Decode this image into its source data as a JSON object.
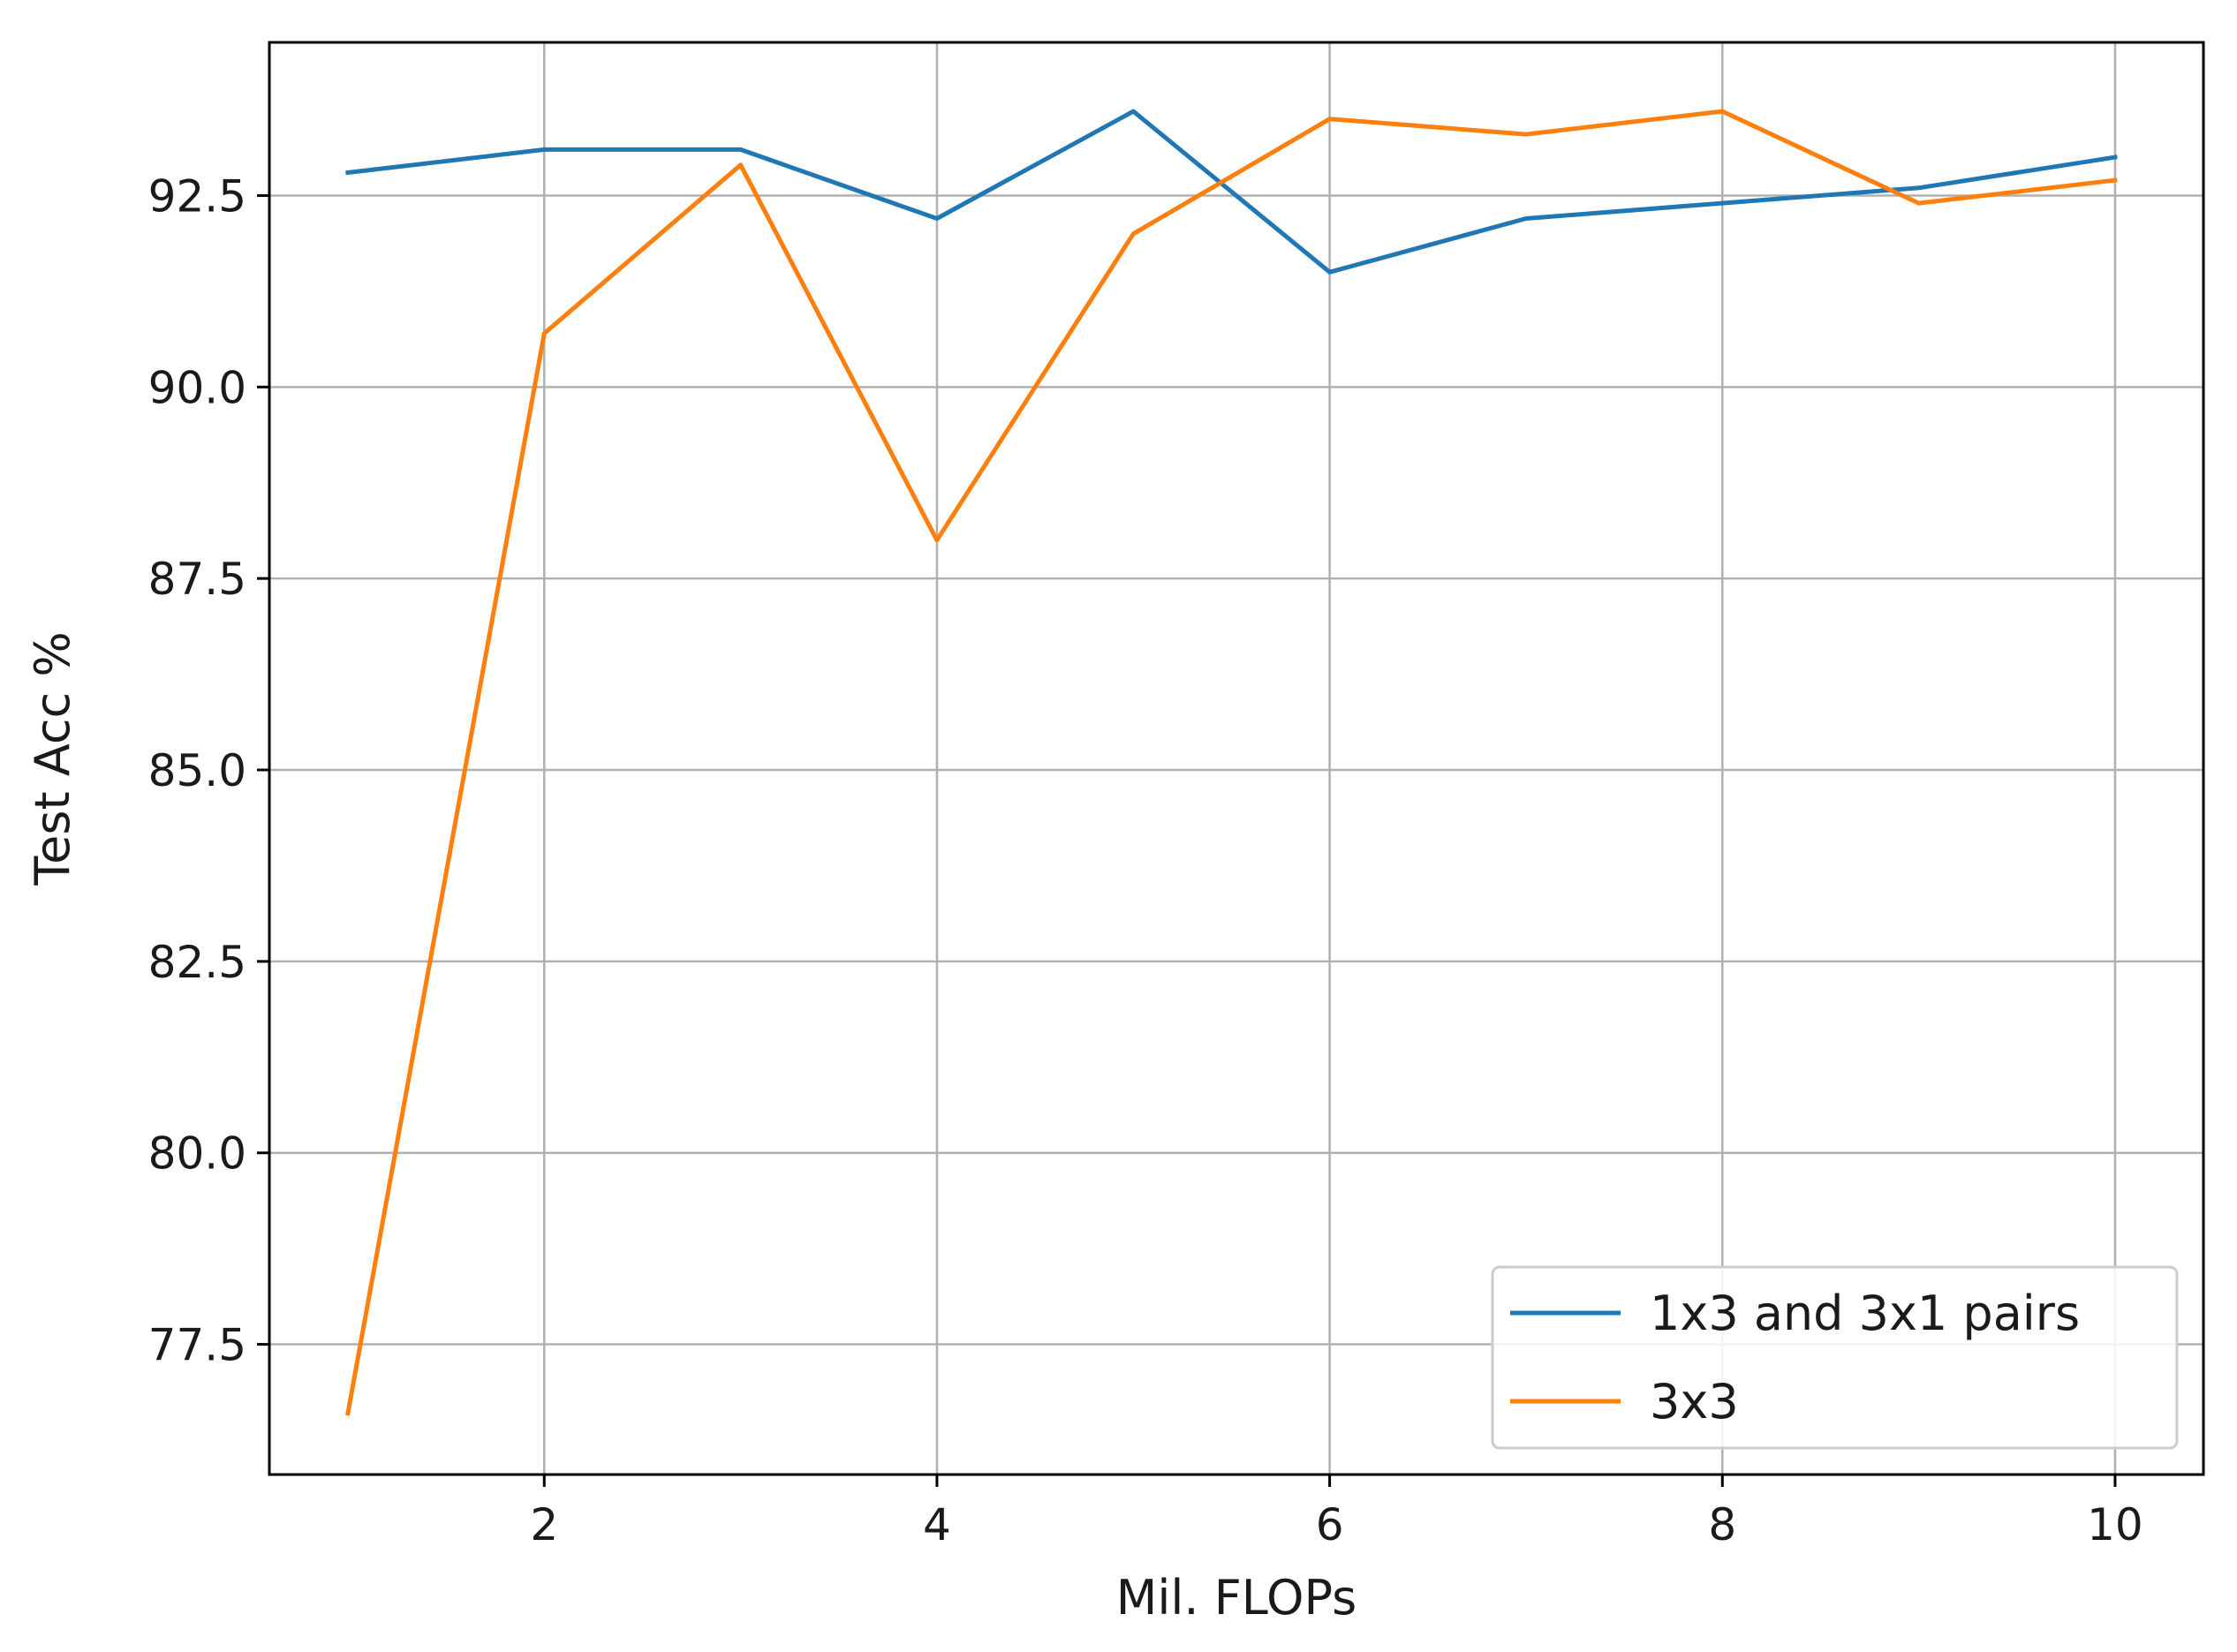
{
  "chart_data": {
    "type": "line",
    "title": "",
    "xlabel": "Mil. FLOPs",
    "ylabel": "Test Acc %",
    "xlim": [
      0.6,
      10.45
    ],
    "ylim": [
      75.8,
      94.5
    ],
    "xticks": [
      2,
      4,
      6,
      8,
      10
    ],
    "yticks": [
      77.5,
      80.0,
      82.5,
      85.0,
      87.5,
      90.0,
      92.5
    ],
    "xtick_labels": [
      "2",
      "4",
      "6",
      "8",
      "10"
    ],
    "ytick_labels": [
      "77.5",
      "80.0",
      "82.5",
      "85.0",
      "87.5",
      "90.0",
      "92.5"
    ],
    "grid": true,
    "legend_position": "lower-right",
    "x": [
      1,
      2,
      3,
      4,
      5,
      6,
      7,
      8,
      9,
      10
    ],
    "series": [
      {
        "name": "1x3 and 3x1 pairs",
        "color": "#1f77b4",
        "values": [
          92.8,
          93.1,
          93.1,
          92.2,
          93.6,
          91.5,
          92.2,
          92.4,
          92.6,
          93.0
        ]
      },
      {
        "name": "3x3",
        "color": "#ff7f0e",
        "values": [
          76.6,
          90.7,
          92.9,
          88.0,
          92.0,
          93.5,
          93.3,
          93.6,
          92.4,
          92.7
        ]
      }
    ]
  }
}
